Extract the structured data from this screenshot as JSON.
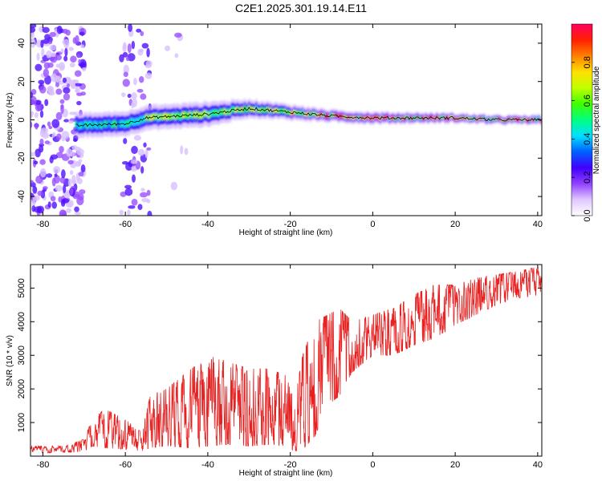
{
  "figure_title": "C2E1.2025.301.19.14.E11",
  "colors": {
    "snr_line": "#e82020",
    "axis": "#000000",
    "trace_center": "#000000"
  },
  "chart_data": [
    {
      "type": "heatmap",
      "name": "spectrogram",
      "title": "C2E1.2025.301.19.14.E11",
      "xlabel": "Height of straight line (km)",
      "ylabel": "Frequency (Hz)",
      "xlim": [
        -83,
        41
      ],
      "ylim": [
        -50,
        50
      ],
      "xticks": [
        "-80",
        "-60",
        "-40",
        "-20",
        "0",
        "20",
        "40"
      ],
      "xtick_values": [
        -80,
        -60,
        -40,
        -20,
        0,
        20,
        40
      ],
      "yticks": [
        "-40",
        "-20",
        "0",
        "20",
        "40"
      ],
      "ytick_values": [
        -40,
        -20,
        0,
        20,
        40
      ],
      "colorbar": {
        "label": "Normalized spectral amplitude",
        "range": [
          0,
          1
        ],
        "ticks": [
          "0.0",
          "0.2",
          "0.4",
          "0.6",
          "0.8"
        ],
        "tick_values": [
          0.0,
          0.2,
          0.4,
          0.6,
          0.8
        ],
        "colormap": [
          "#ffffff",
          "#e0c8ff",
          "#9040ff",
          "#4000ff",
          "#0060ff",
          "#00e0ff",
          "#00ff80",
          "#40ff00",
          "#c0ff00",
          "#ffe000",
          "#ff8000",
          "#ff2000",
          "#ff0060"
        ]
      },
      "signal_track": {
        "description_x": [
          -72,
          -60,
          -55,
          -40,
          -30,
          -20,
          -10,
          0,
          10,
          20,
          30,
          41
        ],
        "center_freq": [
          -3,
          -2,
          1,
          3,
          6,
          4,
          2,
          1,
          1,
          1,
          0,
          0
        ],
        "half_width_hz": [
          4,
          4,
          4,
          4,
          3,
          2.5,
          2,
          2,
          1.8,
          1.6,
          1.5,
          1.5
        ]
      }
    },
    {
      "type": "line",
      "name": "snr",
      "xlabel": "Height of straight line (km)",
      "ylabel": "SNR (10 * v/v)",
      "xlim": [
        -83,
        41
      ],
      "ylim": [
        0,
        5700
      ],
      "xticks": [
        "-80",
        "-60",
        "-40",
        "-20",
        "0",
        "20",
        "40"
      ],
      "xtick_values": [
        -80,
        -60,
        -40,
        -20,
        0,
        20,
        40
      ],
      "yticks": [
        "1000",
        "2000",
        "3000",
        "4000",
        "5000"
      ],
      "ytick_values": [
        1000,
        2000,
        3000,
        4000,
        5000
      ],
      "envelope": {
        "x": [
          -83,
          -75,
          -70,
          -68,
          -65,
          -60,
          -56,
          -54,
          -50,
          -45,
          -40,
          -35,
          -30,
          -25,
          -21,
          -19,
          -17,
          -14,
          -11,
          -8,
          -5,
          0,
          5,
          10,
          15,
          20,
          25,
          30,
          35,
          41
        ],
        "low": [
          100,
          100,
          150,
          300,
          250,
          200,
          150,
          250,
          300,
          250,
          300,
          350,
          300,
          350,
          300,
          150,
          200,
          600,
          1500,
          1800,
          2500,
          3000,
          3000,
          3300,
          3500,
          3900,
          4200,
          4500,
          4700,
          4800
        ],
        "high": [
          300,
          300,
          500,
          1100,
          1400,
          1100,
          700,
          1800,
          2000,
          2500,
          3000,
          2800,
          2600,
          2600,
          2400,
          1600,
          3000,
          4000,
          4200,
          4400,
          4000,
          4200,
          4400,
          4800,
          5100,
          5100,
          5300,
          5400,
          5500,
          5650
        ]
      }
    }
  ]
}
